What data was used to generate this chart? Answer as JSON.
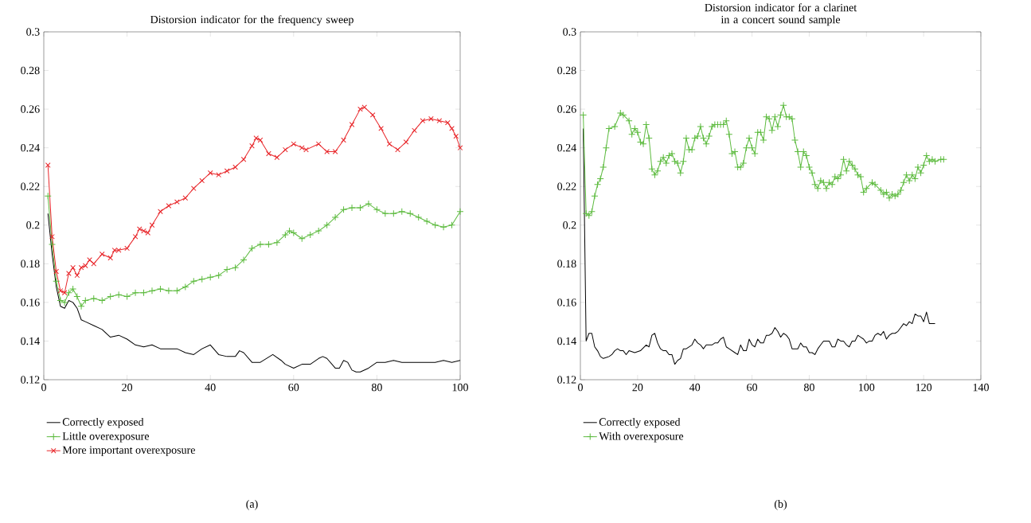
{
  "chart_data": [
    {
      "type": "line",
      "title": "Distorsion indicator for the frequency sweep",
      "xlim": [
        0,
        100
      ],
      "ylim": [
        0.12,
        0.3
      ],
      "xticks": [
        0,
        20,
        40,
        60,
        80,
        100
      ],
      "yticks": [
        0.12,
        0.14,
        0.16,
        0.18,
        0.2,
        0.22,
        0.24,
        0.26,
        0.28,
        0.3
      ],
      "legend": "bottom",
      "annotations": [
        "(a)"
      ],
      "series": [
        {
          "name": "Correctly exposed",
          "color": "#000000",
          "marker": "none",
          "x": [
            1,
            2,
            3,
            4,
            5,
            6,
            7,
            8,
            9,
            10,
            12,
            14,
            16,
            18,
            20,
            22,
            24,
            26,
            28,
            30,
            32,
            34,
            36,
            38,
            40,
            42,
            44,
            46,
            47,
            48,
            50,
            52,
            55,
            57,
            58,
            60,
            62,
            64,
            66,
            67,
            68,
            70,
            71,
            72,
            73,
            74,
            75,
            76,
            78,
            80,
            82,
            84,
            86,
            88,
            90,
            94,
            96,
            98,
            100
          ],
          "values": [
            0.206,
            0.185,
            0.168,
            0.158,
            0.157,
            0.161,
            0.16,
            0.157,
            0.151,
            0.15,
            0.148,
            0.146,
            0.142,
            0.143,
            0.141,
            0.138,
            0.137,
            0.138,
            0.136,
            0.136,
            0.136,
            0.134,
            0.133,
            0.136,
            0.138,
            0.133,
            0.132,
            0.132,
            0.135,
            0.134,
            0.129,
            0.129,
            0.133,
            0.13,
            0.128,
            0.126,
            0.128,
            0.128,
            0.131,
            0.132,
            0.131,
            0.126,
            0.126,
            0.13,
            0.129,
            0.125,
            0.124,
            0.124,
            0.126,
            0.129,
            0.129,
            0.13,
            0.129,
            0.129,
            0.129,
            0.129,
            0.13,
            0.129,
            0.13
          ]
        },
        {
          "name": "Little overexposure",
          "color": "#5dbb3f",
          "marker": "plus",
          "x": [
            1,
            2,
            3,
            4,
            5,
            6,
            7,
            8,
            9,
            10,
            12,
            14,
            16,
            18,
            20,
            22,
            24,
            26,
            28,
            30,
            32,
            34,
            36,
            38,
            40,
            42,
            44,
            46,
            48,
            50,
            52,
            54,
            56,
            58,
            59,
            60,
            62,
            64,
            66,
            68,
            70,
            72,
            74,
            76,
            78,
            80,
            82,
            84,
            86,
            88,
            90,
            92,
            94,
            96,
            98,
            100
          ],
          "values": [
            0.215,
            0.19,
            0.171,
            0.161,
            0.16,
            0.165,
            0.167,
            0.163,
            0.158,
            0.161,
            0.162,
            0.161,
            0.163,
            0.164,
            0.163,
            0.165,
            0.165,
            0.166,
            0.167,
            0.166,
            0.166,
            0.168,
            0.171,
            0.172,
            0.173,
            0.174,
            0.177,
            0.178,
            0.182,
            0.188,
            0.19,
            0.19,
            0.191,
            0.195,
            0.197,
            0.196,
            0.193,
            0.195,
            0.197,
            0.2,
            0.204,
            0.208,
            0.209,
            0.209,
            0.211,
            0.208,
            0.206,
            0.206,
            0.207,
            0.206,
            0.204,
            0.202,
            0.2,
            0.199,
            0.2,
            0.207
          ]
        },
        {
          "name": "More important overexposure",
          "color": "#e8262a",
          "marker": "cross",
          "x": [
            1,
            2,
            3,
            4,
            5,
            6,
            7,
            8,
            9,
            10,
            11,
            12,
            14,
            16,
            17,
            18,
            20,
            22,
            23,
            24,
            25,
            26,
            28,
            30,
            32,
            34,
            36,
            38,
            40,
            42,
            44,
            46,
            48,
            50,
            51,
            52,
            54,
            56,
            58,
            60,
            62,
            63,
            66,
            68,
            70,
            72,
            74,
            76,
            77,
            79,
            81,
            83,
            85,
            87,
            89,
            91,
            93,
            95,
            97,
            98,
            99,
            100
          ],
          "values": [
            0.231,
            0.194,
            0.176,
            0.166,
            0.165,
            0.175,
            0.178,
            0.174,
            0.178,
            0.179,
            0.182,
            0.18,
            0.185,
            0.183,
            0.187,
            0.187,
            0.188,
            0.194,
            0.198,
            0.197,
            0.196,
            0.2,
            0.207,
            0.21,
            0.212,
            0.214,
            0.219,
            0.223,
            0.227,
            0.226,
            0.228,
            0.23,
            0.234,
            0.241,
            0.245,
            0.244,
            0.237,
            0.235,
            0.239,
            0.242,
            0.24,
            0.239,
            0.242,
            0.238,
            0.238,
            0.244,
            0.252,
            0.26,
            0.261,
            0.257,
            0.25,
            0.242,
            0.239,
            0.243,
            0.249,
            0.254,
            0.255,
            0.254,
            0.253,
            0.25,
            0.246,
            0.24
          ]
        }
      ]
    },
    {
      "type": "line",
      "title": "Distorsion indicator for a clarinet in a concert sound sample",
      "xlim": [
        0,
        140
      ],
      "ylim": [
        0.12,
        0.3
      ],
      "xticks": [
        0,
        20,
        40,
        60,
        80,
        100,
        120,
        140
      ],
      "yticks": [
        0.12,
        0.14,
        0.16,
        0.18,
        0.2,
        0.22,
        0.24,
        0.26,
        0.28,
        0.3
      ],
      "legend": "bottom",
      "annotations": [
        "(b)"
      ],
      "series": [
        {
          "name": "Correctly exposed",
          "color": "#000000",
          "marker": "none",
          "x": [
            1,
            2,
            3,
            4,
            5,
            6,
            7,
            8,
            10,
            11,
            12,
            13,
            14,
            15,
            16,
            17,
            19,
            21,
            23,
            24,
            25,
            26,
            27,
            28,
            29,
            30,
            31,
            32,
            33,
            34,
            35,
            36,
            37,
            38,
            39,
            40,
            41,
            42,
            43,
            44,
            46,
            47,
            48,
            49,
            50,
            51,
            52,
            54,
            55,
            56,
            57,
            58,
            59,
            60,
            61,
            62,
            63,
            64,
            65,
            66,
            67,
            68,
            69,
            70,
            71,
            72,
            73,
            74,
            75,
            76,
            77,
            78,
            79,
            80,
            81,
            82,
            83,
            84,
            85,
            86,
            87,
            88,
            89,
            90,
            91,
            92,
            93,
            94,
            95,
            96,
            97,
            98,
            99,
            100,
            101,
            102,
            103,
            104,
            105,
            106,
            107,
            108,
            109,
            110,
            111,
            112,
            113,
            114,
            115,
            116,
            117,
            118,
            119,
            120,
            121,
            122,
            123,
            124
          ],
          "values": [
            0.25,
            0.14,
            0.144,
            0.144,
            0.137,
            0.135,
            0.132,
            0.131,
            0.132,
            0.133,
            0.135,
            0.136,
            0.135,
            0.135,
            0.133,
            0.135,
            0.134,
            0.135,
            0.138,
            0.137,
            0.143,
            0.144,
            0.139,
            0.136,
            0.135,
            0.135,
            0.133,
            0.133,
            0.128,
            0.13,
            0.131,
            0.136,
            0.136,
            0.137,
            0.138,
            0.141,
            0.139,
            0.138,
            0.136,
            0.138,
            0.138,
            0.139,
            0.139,
            0.141,
            0.142,
            0.137,
            0.136,
            0.134,
            0.133,
            0.138,
            0.135,
            0.135,
            0.141,
            0.138,
            0.137,
            0.141,
            0.139,
            0.139,
            0.143,
            0.143,
            0.144,
            0.147,
            0.145,
            0.142,
            0.144,
            0.143,
            0.141,
            0.136,
            0.136,
            0.136,
            0.139,
            0.137,
            0.137,
            0.134,
            0.134,
            0.133,
            0.136,
            0.138,
            0.14,
            0.14,
            0.14,
            0.137,
            0.137,
            0.141,
            0.14,
            0.14,
            0.138,
            0.137,
            0.14,
            0.14,
            0.143,
            0.142,
            0.141,
            0.139,
            0.14,
            0.14,
            0.143,
            0.144,
            0.143,
            0.145,
            0.141,
            0.143,
            0.144,
            0.144,
            0.145,
            0.147,
            0.149,
            0.148,
            0.15,
            0.149,
            0.154,
            0.153,
            0.153,
            0.15,
            0.155,
            0.149,
            0.149,
            0.149
          ]
        },
        {
          "name": "With overexposure",
          "color": "#5dbb3f",
          "marker": "plus",
          "x": [
            1,
            2,
            3,
            4,
            5,
            6,
            7,
            8,
            9,
            10,
            12,
            14,
            15,
            17,
            18,
            19,
            20,
            21,
            22,
            23,
            24,
            25,
            26,
            27,
            28,
            29,
            30,
            31,
            32,
            33,
            34,
            35,
            36,
            37,
            38,
            39,
            40,
            41,
            42,
            43,
            44,
            45,
            46,
            47,
            48,
            49,
            50,
            51,
            52,
            53,
            54,
            55,
            56,
            57,
            58,
            59,
            60,
            61,
            62,
            63,
            64,
            65,
            66,
            67,
            68,
            69,
            70,
            71,
            72,
            73,
            74,
            75,
            76,
            77,
            78,
            79,
            80,
            81,
            82,
            83,
            84,
            85,
            86,
            87,
            88,
            89,
            90,
            91,
            92,
            93,
            94,
            95,
            96,
            97,
            98,
            99,
            100,
            102,
            103,
            105,
            106,
            107,
            108,
            109,
            110,
            111,
            112,
            113,
            114,
            115,
            116,
            117,
            118,
            119,
            120,
            121,
            122,
            123,
            124,
            126,
            127
          ],
          "values": [
            0.257,
            0.206,
            0.205,
            0.207,
            0.215,
            0.221,
            0.224,
            0.23,
            0.24,
            0.25,
            0.251,
            0.258,
            0.257,
            0.254,
            0.247,
            0.25,
            0.248,
            0.243,
            0.242,
            0.252,
            0.245,
            0.229,
            0.226,
            0.228,
            0.233,
            0.235,
            0.232,
            0.236,
            0.237,
            0.233,
            0.232,
            0.227,
            0.233,
            0.245,
            0.239,
            0.239,
            0.245,
            0.246,
            0.251,
            0.245,
            0.242,
            0.246,
            0.251,
            0.252,
            0.252,
            0.252,
            0.252,
            0.254,
            0.247,
            0.237,
            0.238,
            0.23,
            0.23,
            0.232,
            0.24,
            0.245,
            0.24,
            0.237,
            0.248,
            0.248,
            0.244,
            0.256,
            0.255,
            0.249,
            0.256,
            0.251,
            0.257,
            0.262,
            0.256,
            0.256,
            0.255,
            0.244,
            0.238,
            0.23,
            0.238,
            0.236,
            0.23,
            0.227,
            0.221,
            0.219,
            0.223,
            0.222,
            0.219,
            0.222,
            0.221,
            0.225,
            0.224,
            0.226,
            0.234,
            0.228,
            0.233,
            0.231,
            0.229,
            0.226,
            0.225,
            0.217,
            0.219,
            0.222,
            0.221,
            0.218,
            0.216,
            0.217,
            0.214,
            0.216,
            0.215,
            0.216,
            0.218,
            0.222,
            0.226,
            0.223,
            0.226,
            0.224,
            0.23,
            0.227,
            0.231,
            0.236,
            0.233,
            0.234,
            0.233,
            0.234,
            0.234
          ]
        }
      ]
    }
  ]
}
